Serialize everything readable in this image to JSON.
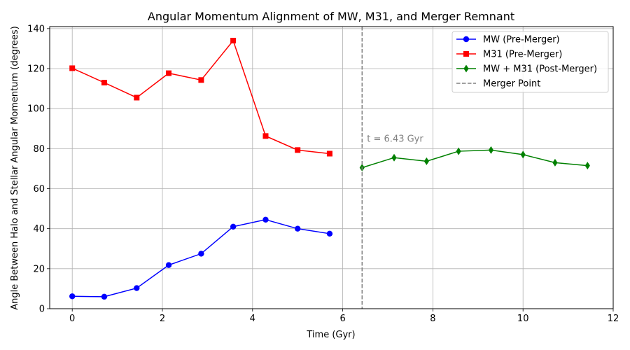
{
  "chart_data": {
    "type": "line",
    "title": "Angular Momentum Alignment of MW, M31, and Merger Remnant",
    "xlabel": "Time (Gyr)",
    "ylabel": "Angle Between Halo and Stellar Angular Momentum (degrees)",
    "xlim": [
      -0.5,
      12
    ],
    "ylim": [
      0,
      141
    ],
    "x_ticks": [
      0,
      2,
      4,
      6,
      8,
      10,
      12
    ],
    "y_ticks": [
      0,
      20,
      40,
      60,
      80,
      100,
      120,
      140
    ],
    "grid": true,
    "legend_position": "top-right",
    "series": [
      {
        "name": "MW (Pre-Merger)",
        "color": "#0000ff",
        "marker": "circle",
        "x": [
          0,
          0.71,
          1.43,
          2.14,
          2.86,
          3.57,
          4.29,
          5.0,
          5.71
        ],
        "y": [
          6.2,
          6.0,
          10.3,
          21.8,
          27.5,
          41.0,
          44.5,
          40.0,
          37.5
        ]
      },
      {
        "name": "M31 (Pre-Merger)",
        "color": "#ff0000",
        "marker": "square",
        "x": [
          0,
          0.71,
          1.43,
          2.14,
          2.86,
          3.57,
          4.29,
          5.0,
          5.71
        ],
        "y": [
          120.2,
          113.0,
          105.5,
          117.7,
          114.3,
          134.0,
          86.3,
          79.3,
          77.5
        ]
      },
      {
        "name": "MW + M31 (Post-Merger)",
        "color": "#008000",
        "marker": "diamond",
        "x": [
          6.43,
          7.14,
          7.86,
          8.57,
          9.29,
          10.0,
          10.71,
          11.43
        ],
        "y": [
          70.5,
          75.5,
          73.7,
          78.7,
          79.3,
          77.0,
          73.0,
          71.5
        ]
      }
    ],
    "merger_line": {
      "name": "Merger Point",
      "x": 6.43,
      "color": "#808080",
      "annotation": "t = 6.43 Gyr"
    }
  }
}
